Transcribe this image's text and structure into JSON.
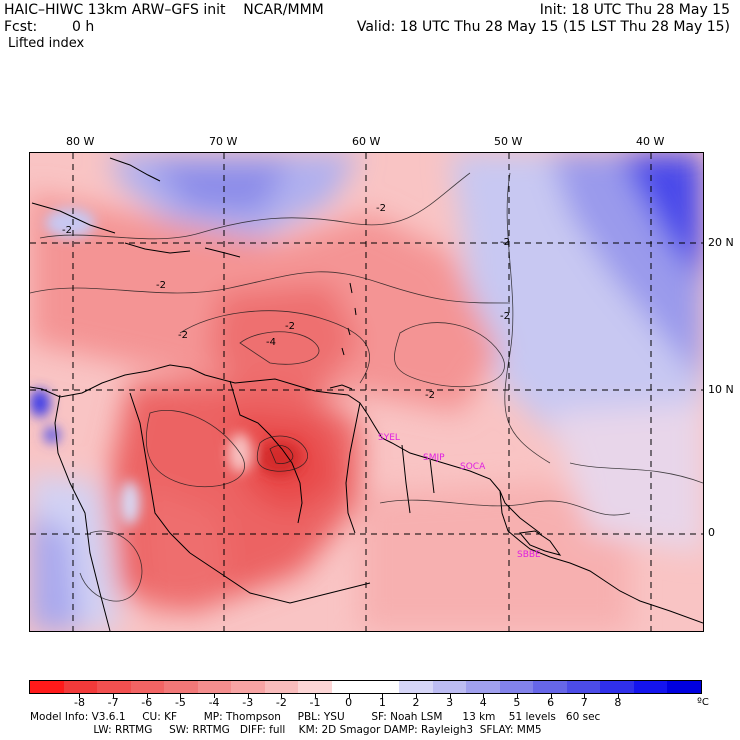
{
  "header": {
    "title_left": "HAIC–HIWC 13km ARW–GFS init    NCAR/MMM",
    "init": "Init: 18 UTC Thu 28 May 15",
    "fcst_label": "Fcst:",
    "fcst_value": "0 h",
    "valid": "Valid: 18 UTC Thu 28 May 15 (15 LST Thu 28 May 15)",
    "field": "Lifted index"
  },
  "map": {
    "lon_labels": [
      {
        "text": "80 W",
        "lon": -80
      },
      {
        "text": "70 W",
        "lon": -70
      },
      {
        "text": "60 W",
        "lon": -60
      },
      {
        "text": "50 W",
        "lon": -50
      },
      {
        "text": "40 W",
        "lon": -40
      }
    ],
    "lat_labels": [
      {
        "text": "20 N",
        "lat": 20
      },
      {
        "text": "10 N",
        "lat": 10
      },
      {
        "text": "0",
        "lat": 0
      }
    ],
    "contour_labels": [
      "-2",
      "-2",
      "-2",
      "-2",
      "-4",
      "-2",
      "-2",
      "-2",
      "-2"
    ],
    "stations": [
      "SYEL",
      "SMJP",
      "SOCA",
      "SBBE"
    ]
  },
  "colorbar": {
    "colors": [
      "#ff1a1a",
      "#f23a3a",
      "#f25050",
      "#f26464",
      "#f27878",
      "#f48e8e",
      "#f7a4a4",
      "#f9bcbc",
      "#fcd6d6",
      "#ffffff",
      "#ffffff",
      "#d6d6f7",
      "#bcbcf2",
      "#a0a0ee",
      "#8282ea",
      "#6666e8",
      "#4c4ce8",
      "#3030ea",
      "#1414ee",
      "#0000e0"
    ],
    "tick_labels": [
      "-8",
      "-7",
      "-6",
      "-5",
      "-4",
      "-3",
      "-2",
      "-1",
      "0",
      "1",
      "2",
      "3",
      "4",
      "5",
      "6",
      "7",
      "8"
    ],
    "unit": "ºC"
  },
  "footer": {
    "line1": "Model Info: V3.6.1     CU: KF        MP: Thompson     PBL: YSU        SF: Noah LSM      13 km    51 levels   60 sec",
    "line2": "                   LW: RRTMG     SW: RRTMG   DIFF: full    KM: 2D Smagor DAMP: Rayleigh3  SFLAY: MM5"
  }
}
